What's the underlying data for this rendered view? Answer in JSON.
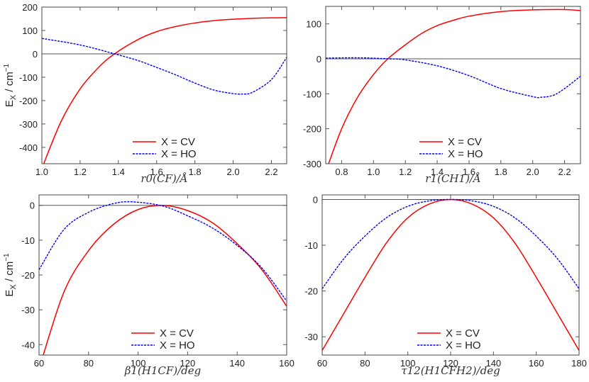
{
  "chart_data": [
    {
      "type": "line",
      "xlabel": "r0(CF)/Å",
      "ylabel": "E_X / cm^-1",
      "xlim": [
        1.0,
        2.28
      ],
      "ylim": [
        -470,
        200
      ],
      "xticks": [
        1.0,
        1.2,
        1.4,
        1.6,
        1.8,
        2.0,
        2.2
      ],
      "yticks": [
        -400,
        -300,
        -200,
        -100,
        0,
        100,
        200
      ],
      "legend": "bottom-center",
      "series": [
        {
          "name": "X = CV",
          "color": "#ff0000",
          "style": "solid",
          "x": [
            1.0,
            1.1,
            1.2,
            1.3,
            1.38,
            1.5,
            1.6,
            1.7,
            1.8,
            1.9,
            2.0,
            2.1,
            2.2,
            2.28
          ],
          "y": [
            -490,
            -290,
            -150,
            -55,
            0,
            60,
            95,
            117,
            132,
            142,
            148,
            152,
            154,
            155
          ]
        },
        {
          "name": "X = HO",
          "color": "#0000ff",
          "style": "dashed",
          "x": [
            1.0,
            1.2,
            1.38,
            1.5,
            1.6,
            1.7,
            1.8,
            1.9,
            2.0,
            2.05,
            2.1,
            2.2,
            2.28
          ],
          "y": [
            66,
            38,
            0,
            -28,
            -58,
            -90,
            -125,
            -155,
            -170,
            -172,
            -165,
            -110,
            -15
          ]
        }
      ]
    },
    {
      "type": "line",
      "xlabel": "r1(CH1)/Å",
      "ylabel": "",
      "xlim": [
        0.7,
        2.3
      ],
      "ylim": [
        -300,
        150
      ],
      "xticks": [
        0.8,
        1.0,
        1.2,
        1.4,
        1.6,
        1.8,
        2.0,
        2.2
      ],
      "yticks": [
        -300,
        -200,
        -100,
        0,
        100
      ],
      "legend": "bottom-center",
      "series": [
        {
          "name": "X = CV",
          "color": "#ff0000",
          "style": "solid",
          "x": [
            0.71,
            0.8,
            0.9,
            1.0,
            1.09,
            1.2,
            1.3,
            1.4,
            1.5,
            1.6,
            1.8,
            2.0,
            2.2,
            2.3
          ],
          "y": [
            -310,
            -200,
            -110,
            -45,
            0,
            40,
            72,
            95,
            110,
            122,
            135,
            140,
            141,
            138
          ]
        },
        {
          "name": "X = HO",
          "color": "#0000ff",
          "style": "dashed",
          "x": [
            0.7,
            0.9,
            1.1,
            1.2,
            1.4,
            1.6,
            1.8,
            2.0,
            2.05,
            2.15,
            2.3
          ],
          "y": [
            2,
            3,
            0,
            -3,
            -20,
            -48,
            -85,
            -108,
            -110,
            -100,
            -50
          ]
        }
      ]
    },
    {
      "type": "line",
      "xlabel": "β1(H1CF)/deg",
      "ylabel": "E_X / cm^-1",
      "xlim": [
        60,
        160
      ],
      "ylim": [
        -43,
        3
      ],
      "xticks": [
        60,
        80,
        100,
        120,
        140,
        160
      ],
      "yticks": [
        -40,
        -30,
        -20,
        -10,
        0
      ],
      "legend": "bottom-center",
      "series": [
        {
          "name": "X = CV",
          "color": "#ff0000",
          "style": "solid",
          "x": [
            60,
            70,
            80,
            90,
            100,
            110,
            120,
            130,
            140,
            150,
            160
          ],
          "y": [
            -47,
            -25,
            -13,
            -5.5,
            -1.2,
            0,
            -1.5,
            -5,
            -11,
            -18.5,
            -29
          ]
        },
        {
          "name": "X = HO",
          "color": "#0000ff",
          "style": "dashed",
          "x": [
            60,
            70,
            80,
            90,
            98,
            110,
            120,
            130,
            140,
            150,
            160
          ],
          "y": [
            -18.5,
            -7,
            -2,
            0.5,
            1,
            -0.2,
            -3,
            -6.5,
            -11.5,
            -18,
            -27.5
          ]
        }
      ]
    },
    {
      "type": "line",
      "xlabel": "τ12(H1CFH2)/deg",
      "ylabel": "",
      "xlim": [
        60,
        180
      ],
      "ylim": [
        -34,
        1
      ],
      "xticks": [
        60,
        80,
        100,
        120,
        140,
        160,
        180
      ],
      "yticks": [
        -30,
        -20,
        -10,
        0
      ],
      "legend": "bottom-center",
      "series": [
        {
          "name": "X = CV",
          "color": "#ff0000",
          "style": "solid",
          "x": [
            60,
            70,
            80,
            90,
            100,
            110,
            120,
            130,
            140,
            150,
            160,
            170,
            180
          ],
          "y": [
            -33,
            -25,
            -17,
            -9.5,
            -4,
            -1,
            0,
            -1,
            -4,
            -9.5,
            -17,
            -25,
            -33
          ]
        },
        {
          "name": "X = HO",
          "color": "#0000ff",
          "style": "dashed",
          "x": [
            60,
            70,
            80,
            90,
            100,
            110,
            120,
            130,
            140,
            150,
            160,
            170,
            180
          ],
          "y": [
            -19.5,
            -13,
            -8,
            -4,
            -1.5,
            -0.3,
            0,
            -0.3,
            -1.5,
            -4,
            -8,
            -13,
            -19.5
          ]
        }
      ]
    }
  ]
}
